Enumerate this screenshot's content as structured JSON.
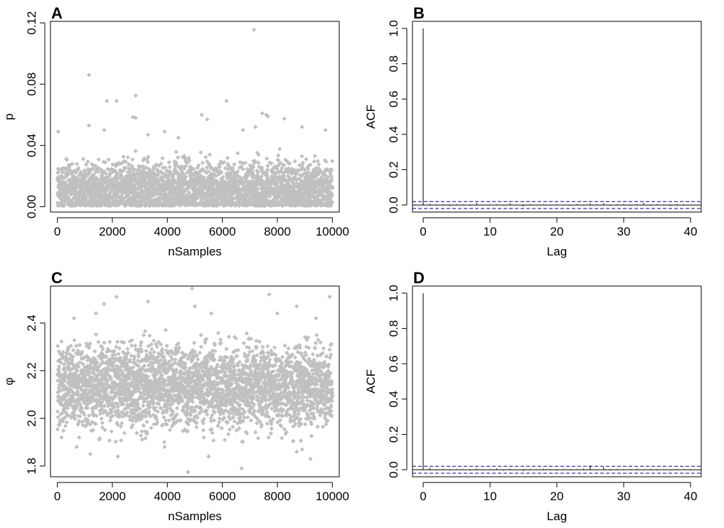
{
  "colors": {
    "points": "#c0c0c0",
    "frame": "#000000",
    "ci": "#00008b"
  },
  "chart_data": [
    {
      "id": "A",
      "type": "scatter",
      "letter": "A",
      "xlabel": "nSamples",
      "ylabel": "p",
      "xlim": [
        -250,
        10250
      ],
      "ylim": [
        -0.0035,
        0.121
      ],
      "xticks": [
        0,
        2000,
        4000,
        6000,
        8000,
        10000
      ],
      "yticks": [
        0.0,
        0.04,
        0.08,
        0.12
      ],
      "ytick_labels": [
        "0.00",
        "0.04",
        "0.08",
        "0.12"
      ],
      "n_samples": 10000,
      "bulk": {
        "center": 0.011,
        "spread": 0.009,
        "min": 0.0005
      },
      "outliers": [
        [
          7150,
          0.1155
        ],
        [
          1150,
          0.086
        ],
        [
          2850,
          0.0725
        ],
        [
          1800,
          0.069
        ],
        [
          2150,
          0.069
        ],
        [
          6150,
          0.069
        ],
        [
          2750,
          0.0585
        ],
        [
          2850,
          0.058
        ],
        [
          5250,
          0.06
        ],
        [
          5450,
          0.057
        ],
        [
          7450,
          0.061
        ],
        [
          7600,
          0.06
        ],
        [
          7650,
          0.059
        ],
        [
          8250,
          0.0575
        ],
        [
          30,
          0.049
        ],
        [
          1150,
          0.053
        ],
        [
          1700,
          0.05
        ],
        [
          3900,
          0.049
        ],
        [
          6750,
          0.05
        ],
        [
          8900,
          0.052
        ],
        [
          9750,
          0.05
        ],
        [
          4400,
          0.045
        ],
        [
          3300,
          0.047
        ],
        [
          7200,
          0.052
        ]
      ]
    },
    {
      "id": "B",
      "type": "bar",
      "letter": "B",
      "xlabel": "Lag",
      "ylabel": "ACF",
      "xlim": [
        -1.6,
        41.6
      ],
      "ylim": [
        -0.04,
        1.04
      ],
      "xticks": [
        0,
        10,
        20,
        30,
        40
      ],
      "yticks": [
        0.0,
        0.2,
        0.4,
        0.6,
        0.8,
        1.0
      ],
      "ytick_labels": [
        "0.0",
        "0.2",
        "0.4",
        "0.6",
        "0.8",
        "1.0"
      ],
      "ci": 0.0196,
      "lags": [
        0,
        1,
        2,
        3,
        4,
        5,
        6,
        7,
        8,
        9,
        10,
        11,
        12,
        13,
        14,
        15,
        16,
        17,
        18,
        19,
        20,
        21,
        22,
        23,
        24,
        25,
        26,
        27,
        28,
        29,
        30,
        31,
        32,
        33,
        34,
        35,
        36,
        37,
        38,
        39,
        40
      ],
      "acf": [
        1.0,
        0.006,
        -0.004,
        0.005,
        -0.006,
        0.004,
        0.003,
        -0.005,
        0.012,
        -0.003,
        0.002,
        0.004,
        -0.004,
        0.009,
        0.003,
        -0.008,
        0.005,
        -0.003,
        0.004,
        -0.004,
        0.003,
        0.002,
        -0.004,
        0.005,
        -0.003,
        0.009,
        0.004,
        0.01,
        -0.005,
        0.004,
        0.006,
        -0.004,
        0.005,
        0.012,
        -0.004,
        0.005,
        0.003,
        -0.006,
        0.005,
        0.004,
        -0.003
      ]
    },
    {
      "id": "C",
      "type": "scatter",
      "letter": "C",
      "xlabel": "nSamples",
      "ylabel": "φ",
      "xlim": [
        -250,
        10250
      ],
      "ylim": [
        1.755,
        2.555
      ],
      "xticks": [
        0,
        2000,
        4000,
        6000,
        8000,
        10000
      ],
      "yticks": [
        1.8,
        2.0,
        2.2,
        2.4
      ],
      "ytick_labels": [
        "1.8",
        "2.0",
        "2.2",
        "2.4"
      ],
      "n_samples": 10000,
      "bulk": {
        "center": 2.135,
        "spread": 0.085,
        "min": 1.9
      },
      "outliers": [
        [
          4900,
          2.545
        ],
        [
          2150,
          2.51
        ],
        [
          9900,
          2.51
        ],
        [
          7700,
          2.52
        ],
        [
          1700,
          2.48
        ],
        [
          3300,
          2.49
        ],
        [
          8700,
          2.47
        ],
        [
          5000,
          2.47
        ],
        [
          5600,
          2.44
        ],
        [
          4750,
          1.775
        ],
        [
          6700,
          1.79
        ],
        [
          2200,
          1.84
        ],
        [
          5500,
          1.84
        ],
        [
          9200,
          1.83
        ],
        [
          8700,
          1.86
        ],
        [
          700,
          1.88
        ],
        [
          1200,
          1.85
        ],
        [
          3900,
          1.88
        ],
        [
          600,
          2.42
        ],
        [
          1400,
          2.44
        ],
        [
          8000,
          2.44
        ],
        [
          9400,
          2.42
        ],
        [
          150,
          1.92
        ],
        [
          8900,
          1.87
        ]
      ]
    },
    {
      "id": "D",
      "type": "bar",
      "letter": "D",
      "xlabel": "Lag",
      "ylabel": "ACF",
      "xlim": [
        -1.6,
        41.6
      ],
      "ylim": [
        -0.04,
        1.04
      ],
      "xticks": [
        0,
        10,
        20,
        30,
        40
      ],
      "yticks": [
        0.0,
        0.2,
        0.4,
        0.6,
        0.8,
        1.0
      ],
      "ytick_labels": [
        "0.0",
        "0.2",
        "0.4",
        "0.6",
        "0.8",
        "1.0"
      ],
      "ci": 0.0196,
      "lags": [
        0,
        1,
        2,
        3,
        4,
        5,
        6,
        7,
        8,
        9,
        10,
        11,
        12,
        13,
        14,
        15,
        16,
        17,
        18,
        19,
        20,
        21,
        22,
        23,
        24,
        25,
        26,
        27,
        28,
        29,
        30,
        31,
        32,
        33,
        34,
        35,
        36,
        37,
        38,
        39,
        40
      ],
      "acf": [
        1.0,
        0.01,
        -0.004,
        0.005,
        -0.006,
        0.003,
        -0.003,
        -0.005,
        0.006,
        -0.004,
        0.003,
        0.007,
        -0.004,
        0.005,
        -0.003,
        -0.008,
        0.004,
        -0.003,
        0.005,
        0.004,
        -0.005,
        0.003,
        -0.004,
        0.004,
        0.006,
        0.025,
        -0.004,
        0.015,
        -0.005,
        0.004,
        -0.003,
        0.004,
        0.006,
        -0.003,
        0.004,
        -0.005,
        0.003,
        -0.004,
        0.004,
        0.003,
        -0.004
      ]
    }
  ]
}
